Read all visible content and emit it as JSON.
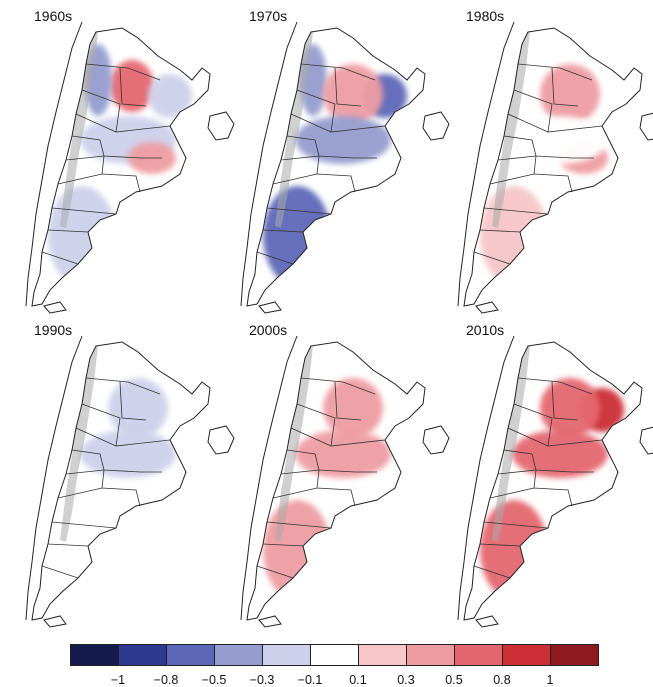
{
  "panels": [
    {
      "label": "1960s",
      "anomalies": [
        {
          "region": "northwest-center",
          "value": 0.6
        },
        {
          "region": "northern-andes",
          "value": -0.4
        },
        {
          "region": "northeast",
          "value": -0.3
        },
        {
          "region": "central",
          "value": -0.2
        },
        {
          "region": "pampas-south",
          "value": 0.4
        },
        {
          "region": "patagonia",
          "value": -0.3
        }
      ]
    },
    {
      "label": "1970s",
      "anomalies": [
        {
          "region": "northern-andes",
          "value": -0.5
        },
        {
          "region": "northeast",
          "value": -0.6
        },
        {
          "region": "north-center",
          "value": 0.3
        },
        {
          "region": "central",
          "value": -0.4
        },
        {
          "region": "patagonia",
          "value": -0.6
        }
      ]
    },
    {
      "label": "1980s",
      "anomalies": [
        {
          "region": "north-center",
          "value": 0.3
        },
        {
          "region": "pampas-south",
          "value": 0.4
        },
        {
          "region": "patagonia",
          "value": 0.2
        },
        {
          "region": "central",
          "value": -0.1
        }
      ]
    },
    {
      "label": "1990s",
      "anomalies": [
        {
          "region": "north-center",
          "value": -0.2
        },
        {
          "region": "central",
          "value": -0.2
        },
        {
          "region": "patagonia",
          "value": -0.1
        }
      ]
    },
    {
      "label": "2000s",
      "anomalies": [
        {
          "region": "north-center",
          "value": 0.3
        },
        {
          "region": "central",
          "value": 0.3
        },
        {
          "region": "patagonia",
          "value": 0.4
        }
      ]
    },
    {
      "label": "2010s",
      "anomalies": [
        {
          "region": "northeast",
          "value": 0.8
        },
        {
          "region": "north-center",
          "value": 0.6
        },
        {
          "region": "central",
          "value": 0.6
        },
        {
          "region": "patagonia",
          "value": 0.5
        }
      ]
    }
  ],
  "colorbar": {
    "colors": [
      "#161b4e",
      "#2d3a8f",
      "#5d67b8",
      "#959ccf",
      "#cdd0ea",
      "#ffffff",
      "#f6c6c9",
      "#ee9ca2",
      "#e4676f",
      "#cc2f36",
      "#8e1a1f"
    ],
    "ticks": [
      "−1",
      "−0.8",
      "−0.5",
      "−0.3",
      "−0.1",
      "0.1",
      "0.3",
      "0.5",
      "0.8",
      "1"
    ]
  }
}
